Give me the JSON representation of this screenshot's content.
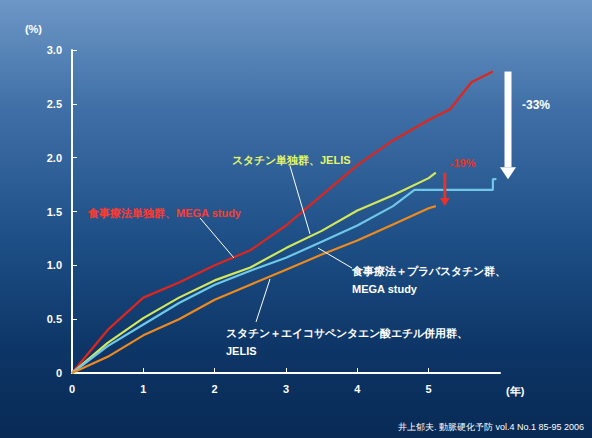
{
  "chart_data": {
    "type": "line",
    "x_label": "(年)",
    "y_label": "(%)",
    "xlim": [
      0,
      6
    ],
    "xticks": [
      0,
      1,
      2,
      3,
      4,
      5
    ],
    "ylim": [
      0,
      3
    ],
    "yticks": [
      0,
      {
        "value": 0.5,
        "label": "0.5"
      },
      {
        "value": 1,
        "label": "1.0"
      },
      {
        "value": 1.5,
        "label": "1.5"
      },
      {
        "value": 2,
        "label": "2.0"
      },
      {
        "value": 2.5,
        "label": "2.5"
      },
      {
        "value": 3,
        "label": "3.0"
      }
    ],
    "grid": false,
    "series": [
      {
        "name": "食事療法単独群、MEGA study",
        "color": "#e0261c",
        "x": [
          0,
          0.5,
          1,
          1.5,
          2,
          2.5,
          3,
          3.5,
          4,
          4.5,
          5,
          5.3,
          5.6,
          5.9
        ],
        "values": [
          0,
          0.4,
          0.7,
          0.84,
          1.0,
          1.14,
          1.37,
          1.65,
          1.93,
          2.16,
          2.35,
          2.45,
          2.7,
          2.8
        ]
      },
      {
        "name": "スタチン単独群、JELIS",
        "color": "#d4e85a",
        "x": [
          0,
          0.5,
          1,
          1.5,
          2,
          2.5,
          3,
          3.5,
          4,
          4.5,
          5,
          5.1
        ],
        "values": [
          0,
          0.28,
          0.51,
          0.7,
          0.86,
          0.98,
          1.16,
          1.32,
          1.51,
          1.65,
          1.81,
          1.86
        ]
      },
      {
        "name": "食事療法＋プラバスタチン群、MEGA study",
        "color": "#6fc8e8",
        "x": [
          0,
          0.5,
          1,
          1.5,
          2,
          2.5,
          3,
          3.5,
          4,
          4.5,
          4.8,
          5.5,
          5.9,
          5.9,
          5.95
        ],
        "values": [
          0,
          0.25,
          0.45,
          0.65,
          0.82,
          0.95,
          1.07,
          1.22,
          1.37,
          1.55,
          1.7,
          1.7,
          1.7,
          1.8,
          1.8
        ]
      },
      {
        "name": "スタチン＋エイコサペンタエン酸エチル併用群、JELIS",
        "color": "#f08a1c",
        "x": [
          0,
          0.5,
          1,
          1.5,
          2,
          2.5,
          3,
          3.5,
          4,
          4.5,
          5,
          5.1
        ],
        "values": [
          0,
          0.15,
          0.35,
          0.5,
          0.68,
          0.82,
          0.96,
          1.1,
          1.23,
          1.38,
          1.53,
          1.55
        ]
      }
    ],
    "annotations": [
      {
        "text": "-33%",
        "color": "#ffffff"
      },
      {
        "text": "-19%",
        "color": "#e8322a"
      }
    ],
    "source": "井上郁夫. 動脈硬化予防 vol.4 No.1 85-95 2006"
  }
}
